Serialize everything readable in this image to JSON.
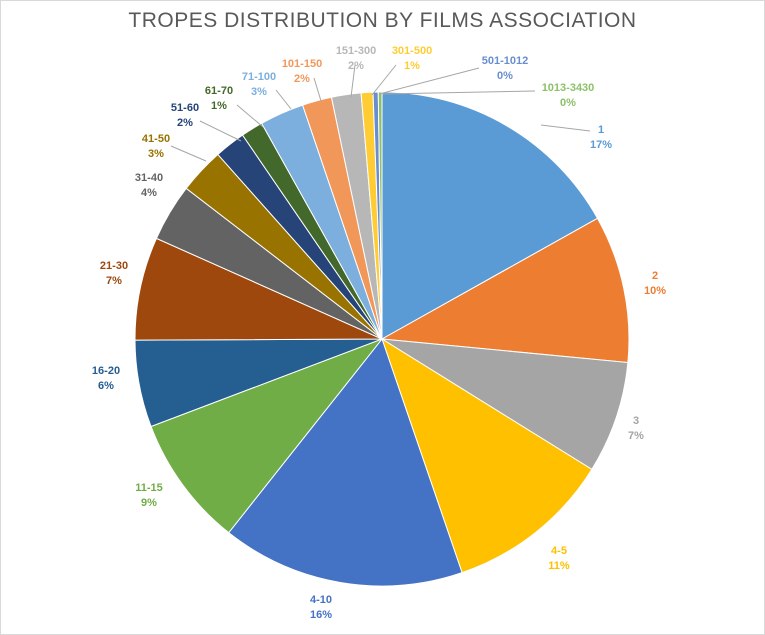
{
  "chart_data": {
    "type": "pie",
    "title": "TROPES DISTRIBUTION BY FILMS ASSOCIATION",
    "categories": [
      "1",
      "2",
      "3",
      "4-5",
      "4-10",
      "11-15",
      "16-20",
      "21-30",
      "31-40",
      "41-50",
      "51-60",
      "61-70",
      "71-100",
      "101-150",
      "151-300",
      "301-500",
      "501-1012",
      "1013-3430"
    ],
    "values": [
      17,
      10,
      7,
      11,
      16,
      9,
      6,
      7,
      4,
      3,
      2,
      1,
      3,
      2,
      2,
      1,
      0,
      0
    ],
    "value_labels": [
      "17%",
      "10%",
      "7%",
      "11%",
      "16%",
      "9%",
      "6%",
      "7%",
      "4%",
      "3%",
      "2%",
      "1%",
      "3%",
      "2%",
      "2%",
      "1%",
      "0%",
      "0%"
    ],
    "colors": [
      "#5b9bd5",
      "#ed7d31",
      "#a5a5a5",
      "#ffc000",
      "#4472c4",
      "#70ad47",
      "#255e91",
      "#9e480e",
      "#636363",
      "#997300",
      "#264478",
      "#43682b",
      "#7cafdd",
      "#f1975a",
      "#b7b7b7",
      "#ffcd33",
      "#698ed0",
      "#8cc168"
    ],
    "label_colors": [
      "#5b9bd5",
      "#ed7d31",
      "#a5a5a5",
      "#ffc000",
      "#4472c4",
      "#70ad47",
      "#255e91",
      "#9e480e",
      "#636363",
      "#997300",
      "#264478",
      "#43682b",
      "#7cafdd",
      "#f1975a",
      "#b7b7b7",
      "#ffcd33",
      "#698ed0",
      "#8cc168"
    ],
    "legend": "none"
  }
}
